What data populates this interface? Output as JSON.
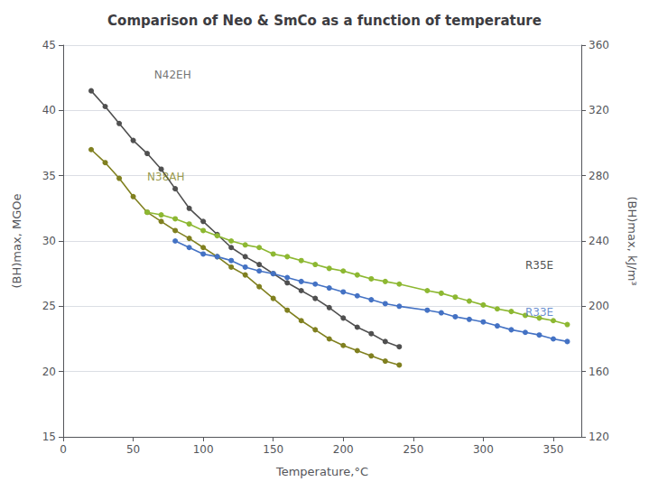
{
  "chart_data": {
    "type": "line",
    "title": "Comparison of Neo & SmCo as a function of temperature",
    "xlabel": "Temperature,°C",
    "ylabel": "(BH)max, MGOe",
    "y2label": "(BH)max, kJ/m³",
    "xlim": [
      0,
      370
    ],
    "xticks": [
      0,
      50,
      100,
      150,
      200,
      250,
      300,
      350
    ],
    "ylim": [
      15,
      45
    ],
    "yticks": [
      15,
      20,
      25,
      30,
      35,
      40,
      45
    ],
    "y2lim": [
      120,
      360
    ],
    "y2ticks": [
      120,
      160,
      200,
      240,
      280,
      320,
      360
    ],
    "grid": true,
    "marker": "circle",
    "series": [
      {
        "name": "N42EH",
        "color": "#505050",
        "x": [
          20,
          30,
          40,
          50,
          60,
          70,
          80,
          90,
          100,
          110,
          120,
          130,
          140,
          150,
          160,
          170,
          180,
          190,
          200,
          210,
          220,
          230,
          240
        ],
        "values": [
          41.5,
          40.3,
          39.0,
          37.7,
          36.7,
          35.5,
          34.0,
          32.5,
          31.5,
          30.5,
          29.5,
          28.8,
          28.2,
          27.5,
          26.8,
          26.2,
          25.6,
          24.9,
          24.1,
          23.4,
          22.9,
          22.3,
          21.9
        ]
      },
      {
        "name": "N38AH",
        "color": "#808020",
        "x": [
          20,
          30,
          40,
          50,
          60,
          70,
          80,
          90,
          100,
          110,
          120,
          130,
          140,
          150,
          160,
          170,
          180,
          190,
          200,
          210,
          220,
          230,
          240
        ],
        "values": [
          37.0,
          36.0,
          34.8,
          33.4,
          32.2,
          31.5,
          30.8,
          30.2,
          29.5,
          28.8,
          28.0,
          27.4,
          26.5,
          25.6,
          24.7,
          23.9,
          23.2,
          22.5,
          22.0,
          21.6,
          21.2,
          20.8,
          20.5
        ]
      },
      {
        "name": "R35E",
        "color": "#8db832",
        "x": [
          60,
          70,
          80,
          90,
          100,
          110,
          120,
          130,
          140,
          150,
          160,
          170,
          180,
          190,
          200,
          210,
          220,
          230,
          240,
          260,
          270,
          280,
          290,
          300,
          310,
          320,
          330,
          340,
          350,
          360
        ],
        "values": [
          32.2,
          32.0,
          31.7,
          31.3,
          30.8,
          30.4,
          30.0,
          29.7,
          29.5,
          29.0,
          28.8,
          28.5,
          28.2,
          27.9,
          27.7,
          27.4,
          27.1,
          26.9,
          26.7,
          26.2,
          26.0,
          25.7,
          25.4,
          25.1,
          24.8,
          24.6,
          24.3,
          24.1,
          23.9,
          23.6
        ]
      },
      {
        "name": "R33E",
        "color": "#4472c4",
        "x": [
          80,
          90,
          100,
          110,
          120,
          130,
          140,
          150,
          160,
          170,
          180,
          190,
          200,
          210,
          220,
          230,
          240,
          260,
          270,
          280,
          290,
          300,
          310,
          320,
          330,
          340,
          350,
          360
        ],
        "values": [
          30.0,
          29.5,
          29.0,
          28.8,
          28.5,
          28.0,
          27.7,
          27.5,
          27.2,
          26.9,
          26.7,
          26.4,
          26.1,
          25.8,
          25.5,
          25.2,
          25.0,
          24.7,
          24.5,
          24.2,
          24.0,
          23.8,
          23.5,
          23.2,
          23.0,
          22.8,
          22.5,
          22.3
        ]
      }
    ],
    "annotations": [
      {
        "text": "N42EH",
        "x": 65,
        "y": 42.3,
        "color": "#505050"
      },
      {
        "text": "N38AH",
        "x": 60,
        "y": 34.5,
        "color": "#808020"
      },
      {
        "text": "R35E",
        "x": 330,
        "y": 27.7,
        "color": "#202020"
      },
      {
        "text": "R33E",
        "x": 330,
        "y": 24.1,
        "color": "#4472c4"
      }
    ]
  }
}
